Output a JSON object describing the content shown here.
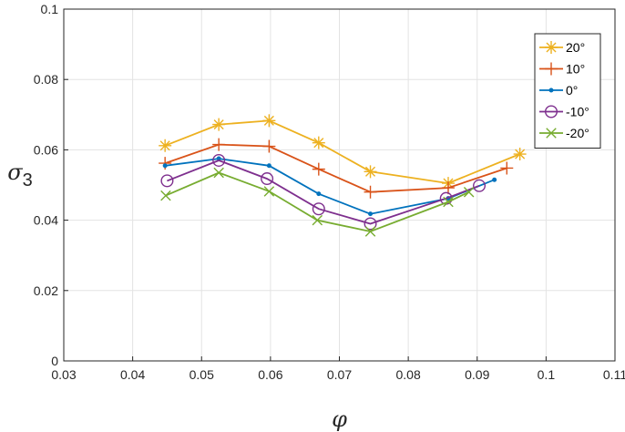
{
  "chart_data": {
    "type": "line",
    "xlabel": "φ",
    "ylabel": "σ",
    "ylabel_sub": "3",
    "xlim": [
      0.03,
      0.11
    ],
    "ylim": [
      0,
      0.1
    ],
    "x_ticks": [
      0.03,
      0.04,
      0.05,
      0.06,
      0.07,
      0.08,
      0.09,
      0.1,
      0.11
    ],
    "x_tick_labels": [
      "0.03",
      "0.04",
      "0.05",
      "0.06",
      "0.07",
      "0.08",
      "0.09",
      "0.1",
      "0.11"
    ],
    "y_ticks": [
      0,
      0.02,
      0.04,
      0.06,
      0.08,
      0.1
    ],
    "y_tick_labels": [
      "0",
      "0.02",
      "0.04",
      "0.06",
      "0.08",
      "0.1"
    ],
    "grid": true,
    "legend_position": "top-right",
    "series": [
      {
        "name": "20°",
        "color": "#EDB120",
        "marker": "asterisk",
        "x": [
          0.0447,
          0.0525,
          0.0598,
          0.067,
          0.0745,
          0.0858,
          0.0962
        ],
        "y": [
          0.0612,
          0.0672,
          0.0683,
          0.062,
          0.0538,
          0.0505,
          0.0588
        ]
      },
      {
        "name": "10°",
        "color": "#D95319",
        "marker": "plus",
        "x": [
          0.0447,
          0.0525,
          0.0598,
          0.067,
          0.0745,
          0.0858,
          0.0943
        ],
        "y": [
          0.0562,
          0.0615,
          0.061,
          0.0545,
          0.048,
          0.0492,
          0.0548
        ]
      },
      {
        "name": "0°",
        "color": "#0072BD",
        "marker": "point",
        "x": [
          0.0447,
          0.0525,
          0.0598,
          0.067,
          0.0745,
          0.0858,
          0.0925
        ],
        "y": [
          0.0555,
          0.0575,
          0.0555,
          0.0475,
          0.0418,
          0.0462,
          0.0515
        ]
      },
      {
        "name": "-10°",
        "color": "#7E2F8E",
        "marker": "circle",
        "x": [
          0.045,
          0.0525,
          0.0595,
          0.067,
          0.0745,
          0.0855,
          0.0903
        ],
        "y": [
          0.0512,
          0.057,
          0.0518,
          0.0432,
          0.039,
          0.0462,
          0.0498
        ]
      },
      {
        "name": "-20°",
        "color": "#77AC30",
        "marker": "cross",
        "x": [
          0.0448,
          0.0525,
          0.0598,
          0.0668,
          0.0745,
          0.0858,
          0.0888
        ],
        "y": [
          0.047,
          0.0535,
          0.0482,
          0.04,
          0.0368,
          0.0452,
          0.048
        ]
      }
    ]
  }
}
